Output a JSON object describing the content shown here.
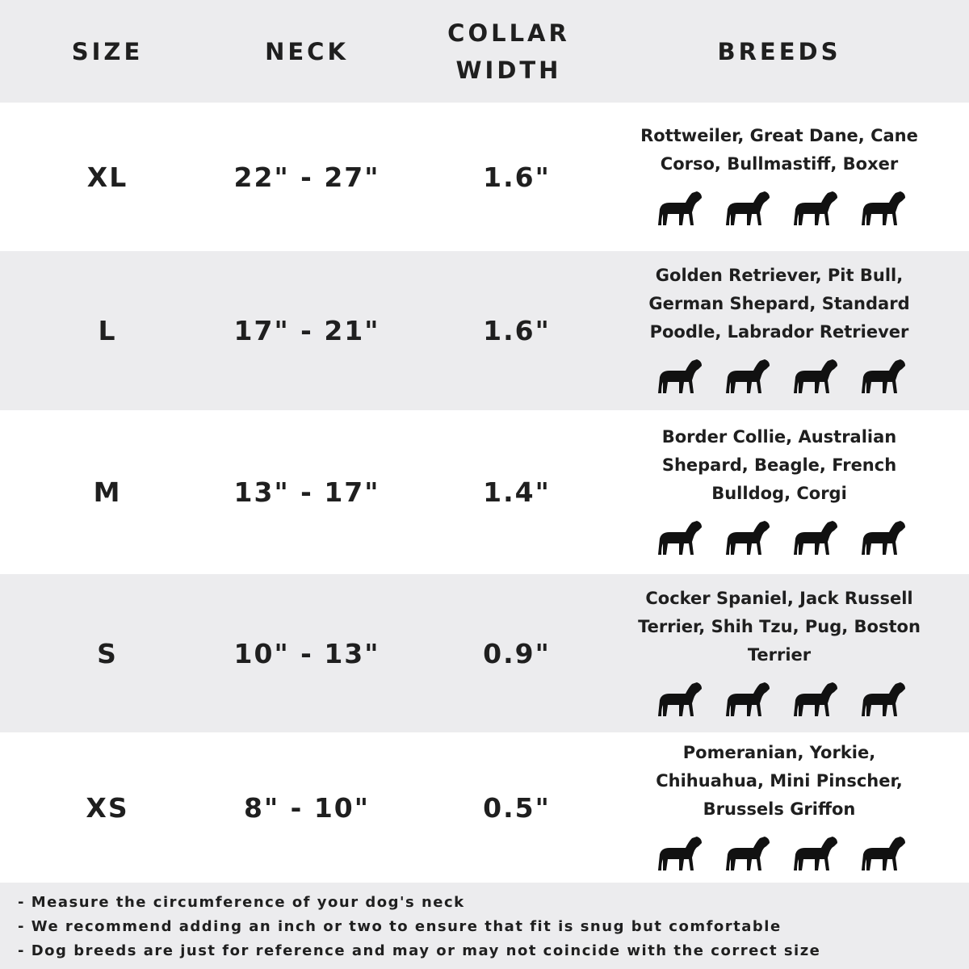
{
  "header": {
    "size": "SIZE",
    "neck": "NECK",
    "collar_width": "COLLAR WIDTH",
    "breeds": "BREEDS"
  },
  "rows": [
    {
      "size": "XL",
      "neck": "22\" - 27\"",
      "collar_width": "1.6\"",
      "breeds": "Rottweiler, Great Dane, Cane Corso, Bullmastiff, Boxer",
      "icons": [
        "rottweiler-silhouette-icon",
        "great-dane-silhouette-icon",
        "cane-corso-silhouette-icon",
        "bullmastiff-silhouette-icon"
      ]
    },
    {
      "size": "L",
      "neck": "17\" - 21\"",
      "collar_width": "1.6\"",
      "breeds": "Golden Retriever, Pit Bull, German Shepard, Standard Poodle, Labrador Retriever",
      "icons": [
        "golden-retriever-silhouette-icon",
        "pit-bull-silhouette-icon",
        "poodle-silhouette-icon",
        "german-shepherd-silhouette-icon"
      ]
    },
    {
      "size": "M",
      "neck": "13\" - 17\"",
      "collar_width": "1.4\"",
      "breeds": "Border Collie, Australian Shepard, Beagle, French Bulldog, Corgi",
      "icons": [
        "border-collie-silhouette-icon",
        "beagle-silhouette-icon",
        "french-bulldog-silhouette-icon",
        "corgi-silhouette-icon"
      ]
    },
    {
      "size": "S",
      "neck": "10\" - 13\"",
      "collar_width": "0.9\"",
      "breeds": "Cocker Spaniel, Jack Russell Terrier, Shih Tzu, Pug, Boston Terrier",
      "icons": [
        "cocker-spaniel-silhouette-icon",
        "jack-russell-silhouette-icon",
        "shih-tzu-silhouette-icon",
        "pug-silhouette-icon"
      ]
    },
    {
      "size": "XS",
      "neck": "8\" - 10\"",
      "collar_width": "0.5\"",
      "breeds": "Pomeranian, Yorkie, Chihuahua, Mini Pinscher, Brussels Griffon",
      "icons": [
        "pomeranian-silhouette-icon",
        "yorkie-silhouette-icon",
        "chihuahua-silhouette-icon",
        "mini-pinscher-silhouette-icon"
      ]
    }
  ],
  "notes": [
    "- Measure the circumference of your dog's neck",
    "- We recommend adding an inch or two to ensure that fit is snug but comfortable",
    "- Dog breeds are just for reference and may or may not coincide with the correct size"
  ],
  "colors": {
    "band": "#ececee",
    "text": "#1f1f1f"
  }
}
